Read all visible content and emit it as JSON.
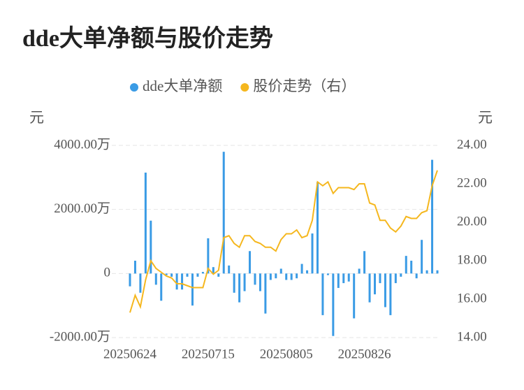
{
  "chart_data": {
    "type": "bar-line",
    "title": "dde大单净额与股价走势",
    "y_unit": "元",
    "y2_unit": "元",
    "categories": [
      "20250624",
      null,
      null,
      null,
      null,
      null,
      null,
      null,
      null,
      null,
      null,
      null,
      null,
      null,
      null,
      "20250715",
      null,
      null,
      null,
      null,
      null,
      null,
      null,
      null,
      null,
      null,
      null,
      null,
      null,
      null,
      "20250805",
      null,
      null,
      null,
      null,
      null,
      null,
      null,
      null,
      null,
      null,
      null,
      null,
      null,
      null,
      "20250826",
      null,
      null,
      null,
      null,
      null,
      null,
      null,
      null,
      null,
      null,
      null,
      null,
      null,
      null
    ],
    "series": [
      {
        "name": "dde大单净额",
        "color": "#3a9be5",
        "kind": "bar",
        "values": [
          -400,
          400,
          -600,
          3150,
          1650,
          -350,
          -850,
          -50,
          -100,
          -500,
          -500,
          -100,
          -1000,
          -100,
          50,
          1100,
          200,
          -100,
          3800,
          250,
          -600,
          -900,
          -550,
          700,
          -350,
          -550,
          -1250,
          -200,
          -150,
          150,
          -200,
          -200,
          -150,
          300,
          100,
          1250,
          2850,
          -1300,
          -50,
          -1950,
          -450,
          -300,
          -250,
          -1400,
          150,
          700,
          -900,
          -650,
          -300,
          -1050,
          -1300,
          -300,
          -100,
          550,
          400,
          -150,
          1050,
          100,
          3550,
          100
        ]
      },
      {
        "name": "股价走势（右）",
        "color": "#f5b71e",
        "kind": "line",
        "axis": "y2",
        "values": [
          15.3,
          16.2,
          15.6,
          17.0,
          18.0,
          17.6,
          17.4,
          17.2,
          17.1,
          16.8,
          16.8,
          16.7,
          16.6,
          16.6,
          16.6,
          17.6,
          17.3,
          17.5,
          19.2,
          19.3,
          18.9,
          18.7,
          19.3,
          19.3,
          19.0,
          18.9,
          18.7,
          18.7,
          18.5,
          19.1,
          19.4,
          19.4,
          19.6,
          19.2,
          19.3,
          20.1,
          22.1,
          21.9,
          22.1,
          21.5,
          21.8,
          21.8,
          21.8,
          21.7,
          22.0,
          22.0,
          21.0,
          20.9,
          20.1,
          20.1,
          19.7,
          19.5,
          19.8,
          20.3,
          20.2,
          20.2,
          20.5,
          20.6,
          21.9,
          22.7
        ]
      }
    ],
    "ylim": [
      -2000,
      4000
    ],
    "yticks": [
      {
        "value": -2000,
        "label": "-2000.00万"
      },
      0,
      {
        "value": 2000,
        "label": "2000.00万"
      },
      {
        "value": 4000,
        "label": "4000.00万"
      }
    ],
    "y2lim": [
      14,
      24
    ],
    "y2ticks": [
      {
        "value": 14,
        "label": "14.00"
      },
      {
        "value": 16,
        "label": "16.00"
      },
      {
        "value": 18,
        "label": "18.00"
      },
      {
        "value": 20,
        "label": "20.00"
      },
      {
        "value": 22,
        "label": "22.00"
      },
      {
        "value": 24,
        "label": "24.00"
      }
    ],
    "grid": true,
    "legend": "top"
  }
}
